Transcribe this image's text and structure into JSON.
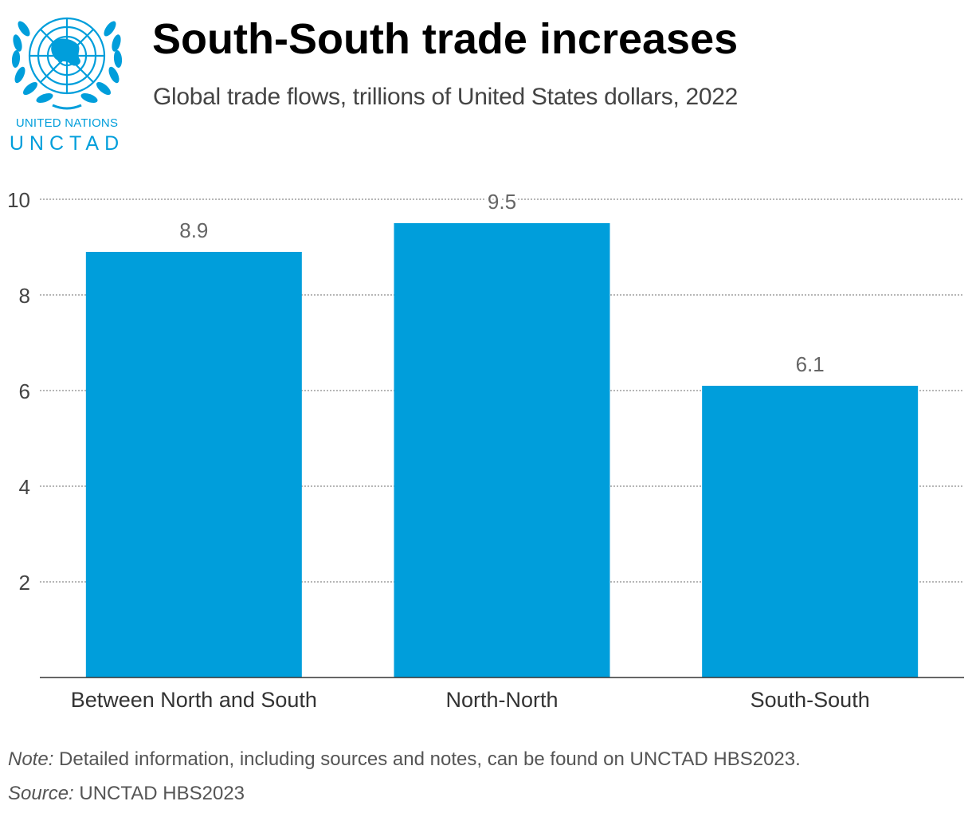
{
  "logo": {
    "org_line1": "UNITED NATIONS",
    "org_line2": "UNCTAD",
    "icon": "un-emblem-icon",
    "color": "#009edb"
  },
  "header": {
    "title": "South-South trade increases",
    "subtitle": "Global trade flows, trillions of United States dollars, 2022"
  },
  "chart_data": {
    "type": "bar",
    "title": "South-South trade increases",
    "subtitle": "Global trade flows, trillions of United States dollars, 2022",
    "categories": [
      "Between North and South",
      "North-North",
      "South-South"
    ],
    "values": [
      8.9,
      9.5,
      6.1
    ],
    "data_labels": [
      "8.9",
      "9.5",
      "6.1"
    ],
    "xlabel": "",
    "ylabel": "",
    "ylim": [
      0,
      10
    ],
    "yticks": [
      2,
      4,
      6,
      8,
      10
    ],
    "ytick_labels": [
      "2",
      "4",
      "6",
      "8",
      "10"
    ],
    "grid": true,
    "bar_color": "#009edb"
  },
  "footer": {
    "note_label": "Note:",
    "note_text": " Detailed information, including sources and notes, can be found on UNCTAD HBS2023.",
    "source_label": "Source:",
    "source_text": " UNCTAD HBS2023"
  }
}
